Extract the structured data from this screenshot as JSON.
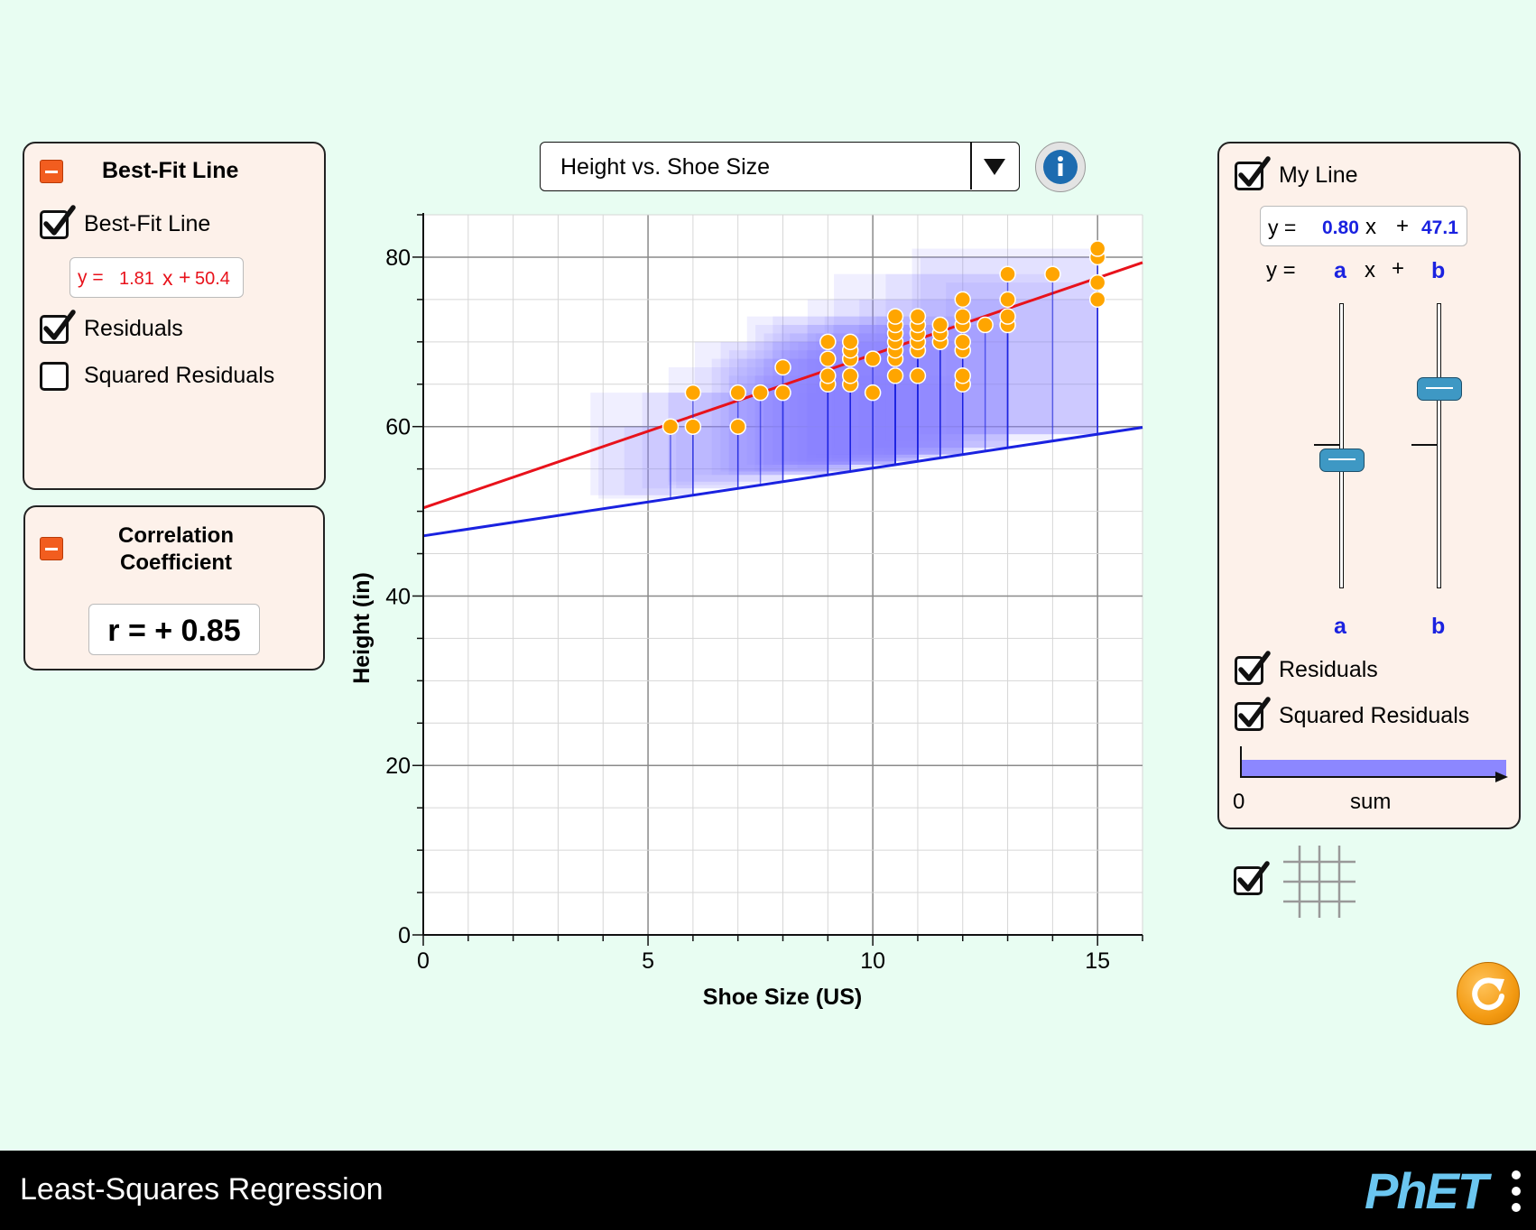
{
  "best_fit_panel": {
    "title": "Best-Fit Line",
    "checkbox_best_fit_label": "Best-Fit Line",
    "best_fit_checked": true,
    "equation_prefix": "y =",
    "slope": "1.81",
    "x_symbol": "x",
    "plus": "+",
    "intercept": "50.4",
    "residuals_label": "Residuals",
    "residuals_checked": true,
    "squared_residuals_label": "Squared Residuals",
    "squared_residuals_checked": false
  },
  "correlation_panel": {
    "title_line1": "Correlation",
    "title_line2": "Coefficient",
    "value_text": "r = + 0.85"
  },
  "dataset_selector": {
    "selected": "Height vs. Shoe Size"
  },
  "my_line_panel": {
    "title": "My Line",
    "my_line_checked": true,
    "equation_prefix": "y =",
    "a_value": "0.80",
    "x_symbol": "x",
    "plus": "+",
    "b_value": "47.1",
    "template_y": "y =",
    "template_a": "a",
    "template_x": "x",
    "template_plus": "+",
    "template_b": "b",
    "slider_a_label": "a",
    "slider_b_label": "b",
    "slider_a_level": 0.45,
    "slider_b_level": 0.7,
    "residuals_label": "Residuals",
    "residuals_checked": true,
    "squared_residuals_label": "Squared Residuals",
    "squared_residuals_checked": true,
    "sum_zero": "0",
    "sum_label": "sum"
  },
  "grid_toggle": {
    "checked": true
  },
  "navbar": {
    "title": "Least-Squares Regression",
    "logo_text": "PhET"
  },
  "colors": {
    "best_fit_line": "#e8121b",
    "my_line": "#1a22e0",
    "residual_square": "#8c87ff",
    "point": "#ffa500",
    "panel_bg": "#fdf1ea",
    "page_bg": "#e8fdf2"
  },
  "chart_data": {
    "type": "scatter",
    "title": "",
    "xlabel": "Shoe Size (US)",
    "ylabel": "Height (in)",
    "xlim": [
      0,
      16
    ],
    "ylim": [
      0,
      85
    ],
    "x_ticks": [
      "0",
      "5",
      "10",
      "15"
    ],
    "y_ticks": [
      "0",
      "20",
      "40",
      "60",
      "80"
    ],
    "grid": true,
    "points": [
      [
        5.5,
        60
      ],
      [
        6,
        60
      ],
      [
        6,
        64
      ],
      [
        7,
        60
      ],
      [
        7,
        64
      ],
      [
        7.5,
        64
      ],
      [
        8,
        64
      ],
      [
        8,
        67
      ],
      [
        9,
        65
      ],
      [
        9,
        66
      ],
      [
        9,
        68
      ],
      [
        9,
        70
      ],
      [
        9.5,
        65
      ],
      [
        9.5,
        66
      ],
      [
        9.5,
        68
      ],
      [
        9.5,
        69
      ],
      [
        9.5,
        70
      ],
      [
        10,
        64
      ],
      [
        10,
        68
      ],
      [
        10.5,
        66
      ],
      [
        10.5,
        68
      ],
      [
        10.5,
        69
      ],
      [
        10.5,
        70
      ],
      [
        10.5,
        71
      ],
      [
        10.5,
        72
      ],
      [
        10.5,
        73
      ],
      [
        11,
        66
      ],
      [
        11,
        69
      ],
      [
        11,
        70
      ],
      [
        11,
        71
      ],
      [
        11,
        72
      ],
      [
        11,
        73
      ],
      [
        11.5,
        70
      ],
      [
        11.5,
        71
      ],
      [
        11.5,
        72
      ],
      [
        12,
        65
      ],
      [
        12,
        66
      ],
      [
        12,
        69
      ],
      [
        12,
        70
      ],
      [
        12,
        72
      ],
      [
        12,
        73
      ],
      [
        12,
        75
      ],
      [
        12.5,
        72
      ],
      [
        13,
        72
      ],
      [
        13,
        73
      ],
      [
        13,
        75
      ],
      [
        13,
        78
      ],
      [
        14,
        78
      ],
      [
        15,
        75
      ],
      [
        15,
        77
      ],
      [
        15,
        80
      ],
      [
        15,
        81
      ]
    ],
    "series": [
      {
        "name": "Best-Fit Line",
        "slope": 1.81,
        "intercept": 50.4
      },
      {
        "name": "My Line",
        "slope": 0.8,
        "intercept": 47.1
      }
    ]
  }
}
